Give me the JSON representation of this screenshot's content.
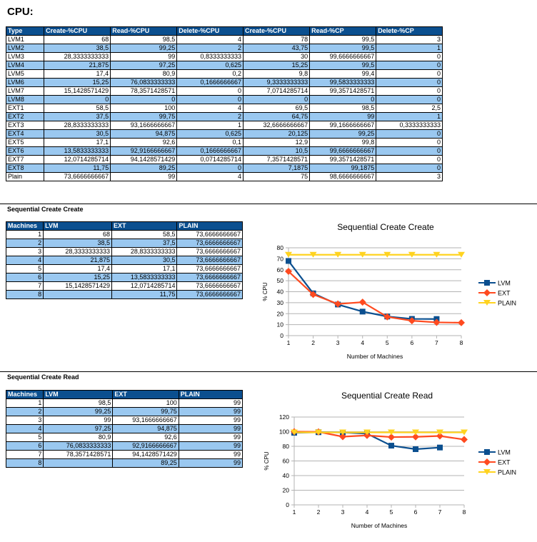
{
  "heading": "CPU:",
  "main_table": {
    "headers": [
      "Type",
      "Create-%CPU",
      "Read-%CPU",
      "Delete-%CPU",
      "Create-%CPU",
      "Read-%CP",
      "Delete-%CP"
    ],
    "rows": [
      [
        "LVM1",
        "68",
        "98,5",
        "4",
        "78",
        "99,5",
        "3"
      ],
      [
        "LVM2",
        "38,5",
        "99,25",
        "2",
        "43,75",
        "99,5",
        "1"
      ],
      [
        "LVM3",
        "28,3333333333",
        "99",
        "0,8333333333",
        "30",
        "99,6666666667",
        "0"
      ],
      [
        "LVM4",
        "21,875",
        "97,25",
        "0,625",
        "15,25",
        "99,5",
        "0"
      ],
      [
        "LVM5",
        "17,4",
        "80,9",
        "0,2",
        "9,8",
        "99,4",
        "0"
      ],
      [
        "LVM6",
        "15,25",
        "76,0833333333",
        "0,1666666667",
        "9,3333333333",
        "99,5833333333",
        "0"
      ],
      [
        "LVM7",
        "15,1428571429",
        "78,3571428571",
        "0",
        "7,0714285714",
        "99,3571428571",
        "0"
      ],
      [
        "LVM8",
        "0",
        "0",
        "0",
        "0",
        "0",
        "0"
      ],
      [
        "EXT1",
        "58,5",
        "100",
        "4",
        "69,5",
        "98,5",
        "2,5"
      ],
      [
        "EXT2",
        "37,5",
        "99,75",
        "2",
        "64,75",
        "99",
        "1"
      ],
      [
        "EXT3",
        "28,8333333333",
        "93,1666666667",
        "1",
        "32,6666666667",
        "99,1666666667",
        "0,3333333333"
      ],
      [
        "EXT4",
        "30,5",
        "94,875",
        "0,625",
        "20,125",
        "99,25",
        "0"
      ],
      [
        "EXT5",
        "17,1",
        "92,6",
        "0,1",
        "12,9",
        "99,8",
        "0"
      ],
      [
        "EXT6",
        "13,5833333333",
        "92,9166666667",
        "0,1666666667",
        "10,5",
        "99,6666666667",
        "0"
      ],
      [
        "EXT7",
        "12,0714285714",
        "94,1428571429",
        "0,0714285714",
        "7,3571428571",
        "99,3571428571",
        "0"
      ],
      [
        "EXT8",
        "11,75",
        "89,25",
        "0",
        "7,1875",
        "99,1875",
        "0"
      ],
      [
        "Plain",
        "73,6666666667",
        "99",
        "4",
        "75",
        "98,6666666667",
        "3"
      ]
    ]
  },
  "section1": {
    "title": "Sequential Create Create",
    "table": {
      "headers": [
        "Machines",
        "LVM",
        "EXT",
        "PLAIN"
      ],
      "rows": [
        [
          "1",
          "68",
          "58,5",
          "73,6666666667"
        ],
        [
          "2",
          "38,5",
          "37,5",
          "73,6666666667"
        ],
        [
          "3",
          "28,3333333333",
          "28,8333333333",
          "73,6666666667"
        ],
        [
          "4",
          "21,875",
          "30,5",
          "73,6666666667"
        ],
        [
          "5",
          "17,4",
          "17,1",
          "73,6666666667"
        ],
        [
          "6",
          "15,25",
          "13,5833333333",
          "73,6666666667"
        ],
        [
          "7",
          "15,1428571429",
          "12,0714285714",
          "73,6666666667"
        ],
        [
          "8",
          "",
          "11,75",
          "73,6666666667"
        ]
      ]
    }
  },
  "section2": {
    "title": "Sequential Create Read",
    "table": {
      "headers": [
        "Machines",
        "LVM",
        "EXT",
        "PLAIN"
      ],
      "rows": [
        [
          "1",
          "98,5",
          "100",
          "99"
        ],
        [
          "2",
          "99,25",
          "99,75",
          "99"
        ],
        [
          "3",
          "99",
          "93,1666666667",
          "99"
        ],
        [
          "4",
          "97,25",
          "94,875",
          "99"
        ],
        [
          "5",
          "80,9",
          "92,6",
          "99"
        ],
        [
          "6",
          "76,0833333333",
          "92,9166666667",
          "99"
        ],
        [
          "7",
          "78,3571428571",
          "94,1428571429",
          "99"
        ],
        [
          "8",
          "",
          "89,25",
          "99"
        ]
      ]
    }
  },
  "colors": {
    "header_bg": "#0b4f8f",
    "row_alt": "#9ac8f0",
    "lvm": "#0b4f8f",
    "ext": "#ff4a1f",
    "plain": "#ffd320"
  },
  "chart_data": [
    {
      "type": "line",
      "title": "Sequential Create Create",
      "xlabel": "Number of Machines",
      "ylabel": "% CPU",
      "x": [
        1,
        2,
        3,
        4,
        5,
        6,
        7,
        8
      ],
      "xticks": [
        "1",
        "2",
        "3",
        "4",
        "5",
        "6",
        "7",
        "8"
      ],
      "ylim": [
        0,
        80
      ],
      "yticks": [
        0,
        10,
        20,
        30,
        40,
        50,
        60,
        70,
        80
      ],
      "grid": true,
      "legend": "right",
      "series": [
        {
          "name": "LVM",
          "marker": "square",
          "color": "#0b4f8f",
          "values": [
            68,
            38.5,
            28.33,
            21.875,
            17.4,
            15.25,
            15.14,
            null
          ]
        },
        {
          "name": "EXT",
          "marker": "diamond",
          "color": "#ff4a1f",
          "values": [
            58.5,
            37.5,
            28.83,
            30.5,
            17.1,
            13.58,
            12.07,
            11.75
          ]
        },
        {
          "name": "PLAIN",
          "marker": "triangle",
          "color": "#ffd320",
          "values": [
            73.67,
            73.67,
            73.67,
            73.67,
            73.67,
            73.67,
            73.67,
            73.67
          ]
        }
      ]
    },
    {
      "type": "line",
      "title": "Sequential Create Read",
      "xlabel": "Number of Machines",
      "ylabel": "% CPU",
      "x": [
        1,
        2,
        3,
        4,
        5,
        6,
        7,
        8
      ],
      "xticks": [
        "1",
        "2",
        "3",
        "4",
        "5",
        "6",
        "7",
        "8"
      ],
      "ylim": [
        0,
        120
      ],
      "yticks": [
        0,
        20,
        40,
        60,
        80,
        100,
        120
      ],
      "grid": true,
      "legend": "right",
      "series": [
        {
          "name": "LVM",
          "marker": "square",
          "color": "#0b4f8f",
          "values": [
            98.5,
            99.25,
            99,
            97.25,
            80.9,
            76.08,
            78.36,
            null
          ]
        },
        {
          "name": "EXT",
          "marker": "diamond",
          "color": "#ff4a1f",
          "values": [
            100,
            99.75,
            93.17,
            94.875,
            92.6,
            92.92,
            94.14,
            89.25
          ]
        },
        {
          "name": "PLAIN",
          "marker": "triangle",
          "color": "#ffd320",
          "values": [
            99,
            99,
            99,
            99,
            99,
            99,
            99,
            99
          ]
        }
      ]
    }
  ]
}
